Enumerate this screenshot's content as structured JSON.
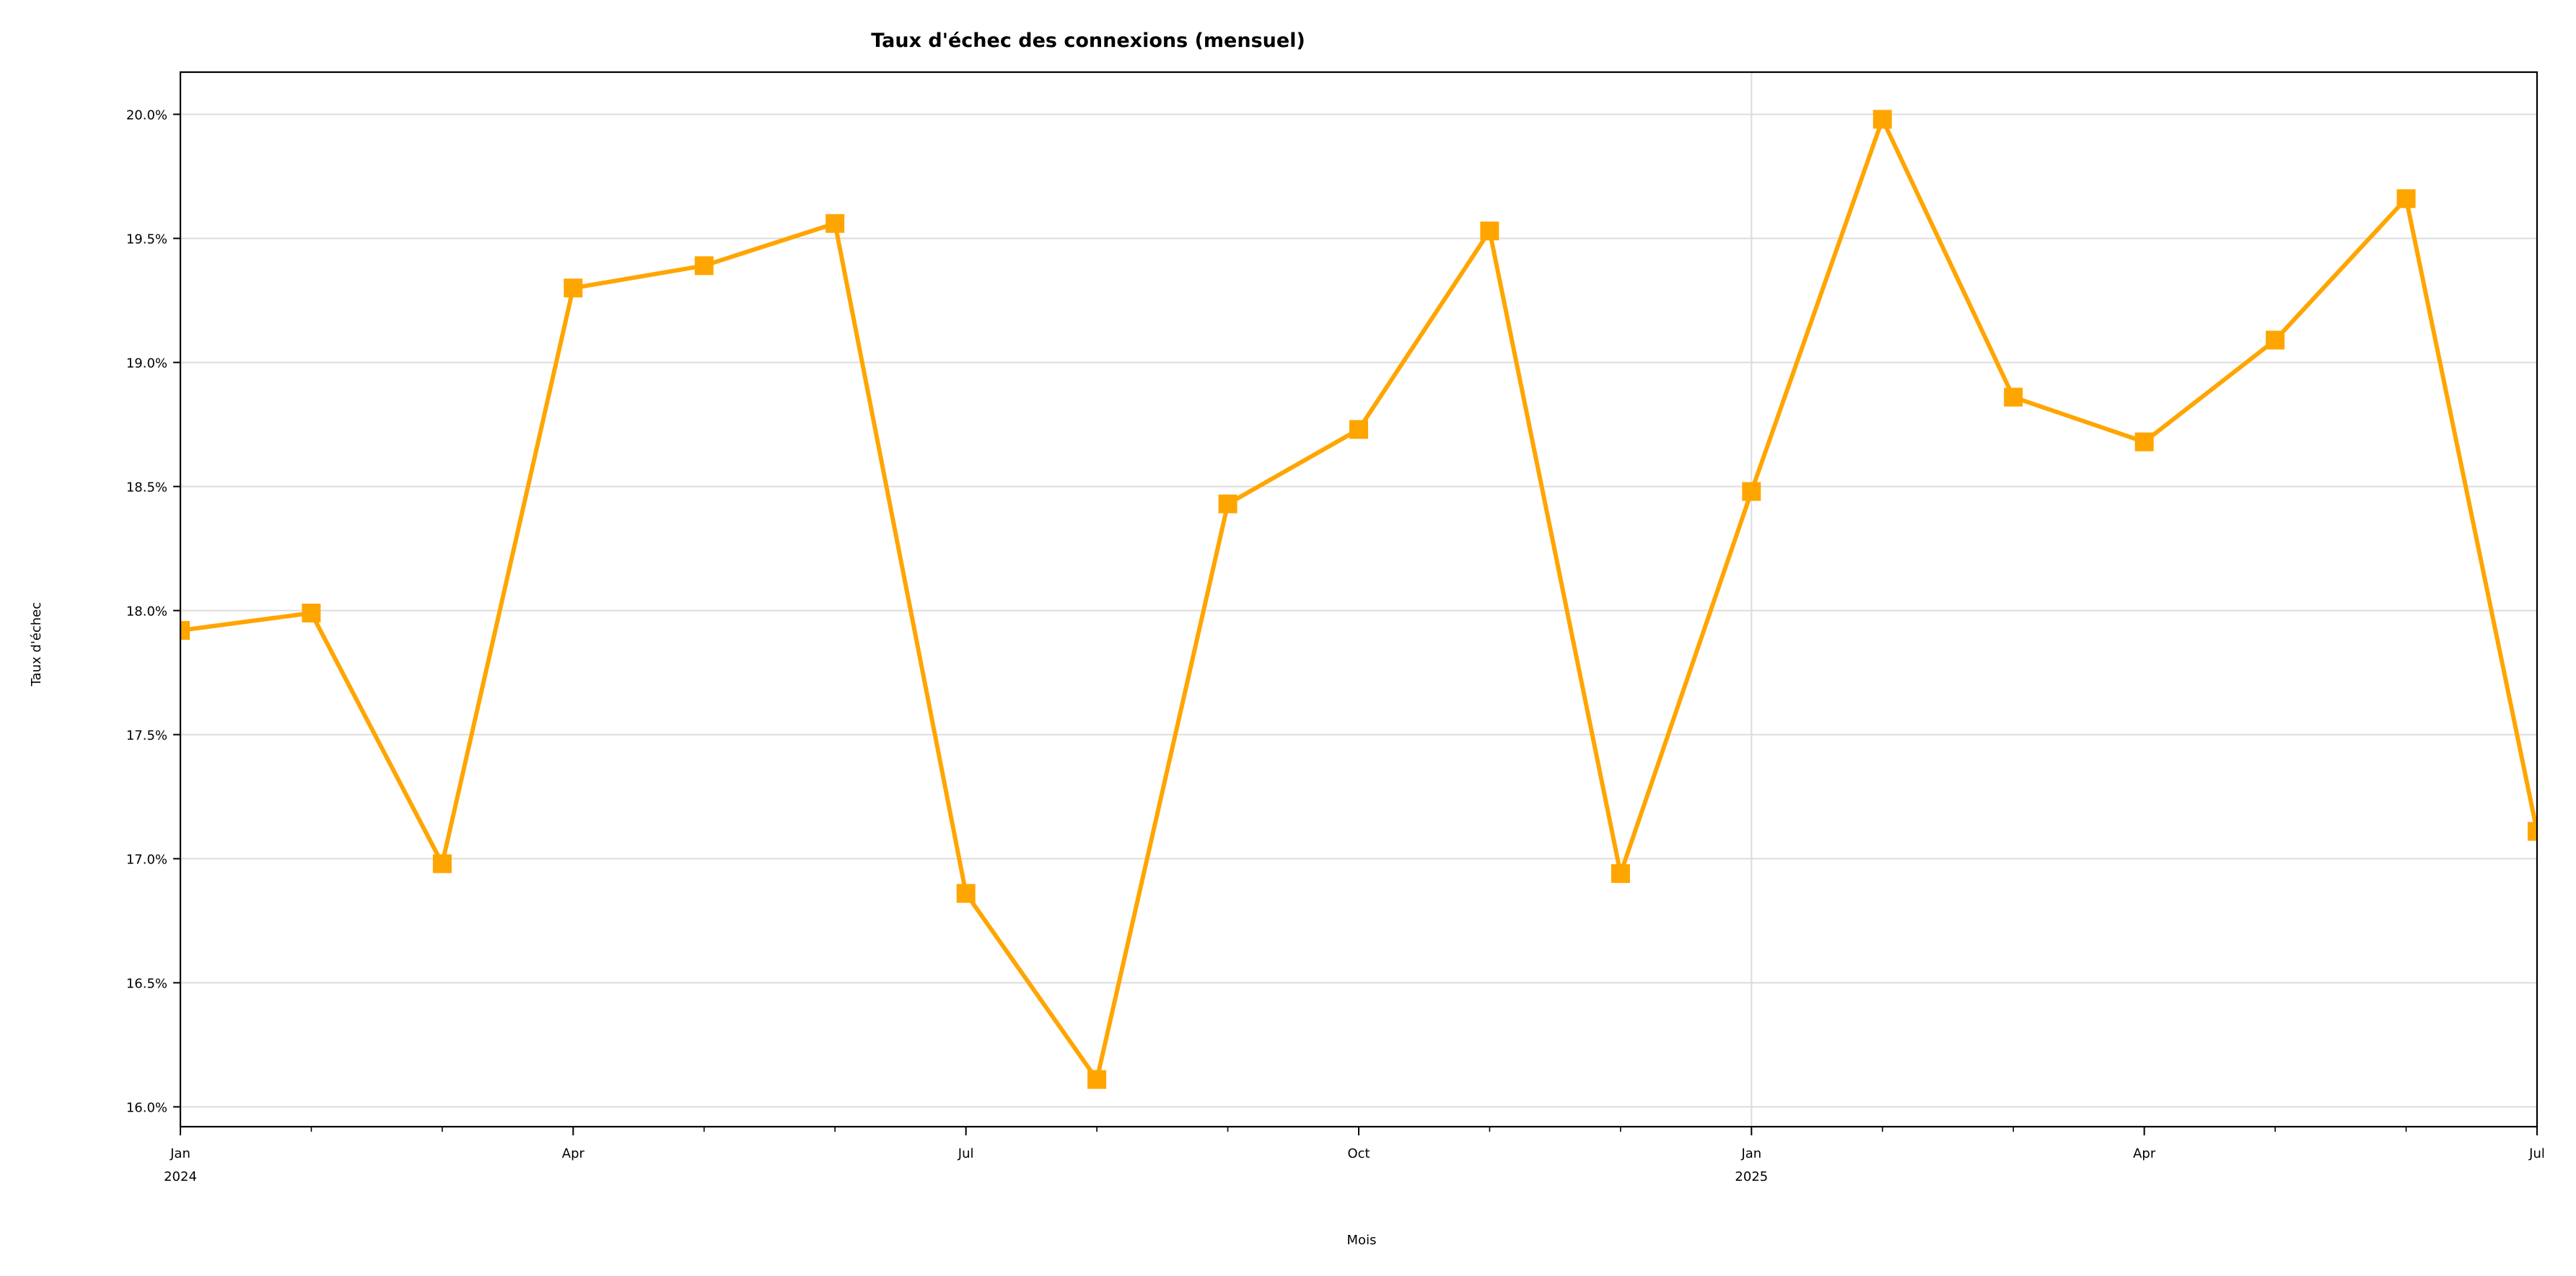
{
  "chart_data": {
    "type": "line",
    "title": "Taux d'échec des connexions (mensuel)",
    "xlabel": "Mois",
    "ylabel": "Taux d'échec",
    "x": [
      "2024-01",
      "2024-02",
      "2024-03",
      "2024-04",
      "2024-05",
      "2024-06",
      "2024-07",
      "2024-08",
      "2024-09",
      "2024-10",
      "2024-11",
      "2024-12",
      "2025-01",
      "2025-02",
      "2025-03",
      "2025-04",
      "2025-05",
      "2025-06",
      "2025-07"
    ],
    "series": [
      {
        "values": [
          17.92,
          17.99,
          16.98,
          19.3,
          19.39,
          19.56,
          16.86,
          16.11,
          18.43,
          18.73,
          19.53,
          16.94,
          18.48,
          19.98,
          18.86,
          18.68,
          19.09,
          19.66,
          17.11
        ],
        "color": "#FFA500",
        "marker": "square"
      }
    ],
    "ylim": [
      15.92,
      20.17
    ],
    "xlim": [
      "2024-01",
      "2025-07"
    ],
    "y_ticks": [
      {
        "value": 16.0,
        "label": "16.0%"
      },
      {
        "value": 16.5,
        "label": "16.5%"
      },
      {
        "value": 17.0,
        "label": "17.0%"
      },
      {
        "value": 17.5,
        "label": "17.5%"
      },
      {
        "value": 18.0,
        "label": "18.0%"
      },
      {
        "value": 18.5,
        "label": "18.5%"
      },
      {
        "value": 19.0,
        "label": "19.0%"
      },
      {
        "value": 19.5,
        "label": "19.5%"
      },
      {
        "value": 20.0,
        "label": "20.0%"
      }
    ],
    "x_major_ticks": [
      {
        "value": "2024-01",
        "label": "Jan",
        "sublabel": "2024"
      },
      {
        "value": "2024-04",
        "label": "Apr",
        "sublabel": ""
      },
      {
        "value": "2024-07",
        "label": "Jul",
        "sublabel": ""
      },
      {
        "value": "2024-10",
        "label": "Oct",
        "sublabel": ""
      },
      {
        "value": "2025-01",
        "label": "Jan",
        "sublabel": "2025"
      },
      {
        "value": "2025-04",
        "label": "Apr",
        "sublabel": ""
      },
      {
        "value": "2025-07",
        "label": "Jul",
        "sublabel": ""
      }
    ],
    "x_minor_ticks": [
      "2024-02",
      "2024-03",
      "2024-05",
      "2024-06",
      "2024-08",
      "2024-09",
      "2024-11",
      "2024-12",
      "2025-02",
      "2025-03",
      "2025-05",
      "2025-06"
    ],
    "x_gridlines": [
      "2025-01"
    ],
    "grid": true,
    "legend": false
  }
}
